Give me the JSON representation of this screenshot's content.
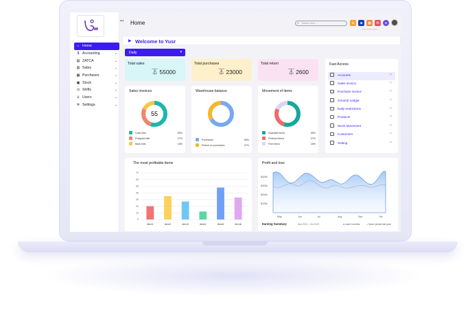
{
  "header": {
    "title": "Home",
    "search_placeholder": "Search here..."
  },
  "welcome": "Welcome to Yusr",
  "period": {
    "selected": "Daily"
  },
  "sidebar": {
    "items": [
      {
        "label": "Home",
        "icon": "home-icon",
        "active": true
      },
      {
        "label": "Accounting",
        "icon": "dollar-icon"
      },
      {
        "label": "ZATCA",
        "icon": "receipt-icon"
      },
      {
        "label": "Sales",
        "icon": "sales-icon"
      },
      {
        "label": "Purchases",
        "icon": "purchases-icon"
      },
      {
        "label": "Stock",
        "icon": "stock-icon"
      },
      {
        "label": "Shifts",
        "icon": "clock-icon"
      },
      {
        "label": "Users",
        "icon": "user-icon"
      },
      {
        "label": "Settings",
        "icon": "gear-icon"
      }
    ]
  },
  "stats": [
    {
      "title": "Total sales",
      "value": "55000",
      "bg": "#d8f6f7"
    },
    {
      "title": "Total purchases",
      "value": "23000",
      "bg": "#fdf0cb"
    },
    {
      "title": "Total return",
      "value": "2600",
      "bg": "#fbe2f3"
    }
  ],
  "sales_invoices": {
    "title": "Sales invoices",
    "center": "55",
    "legend": [
      {
        "label": "Cash bills",
        "pct": "55%",
        "color": "#1bb7ae"
      },
      {
        "label": "Postpaid bills",
        "pct": "27%",
        "color": "#f2856d"
      },
      {
        "label": "Bank bills",
        "pct": "18%",
        "color": "#f8c74a"
      }
    ]
  },
  "warehouse": {
    "title": "Warehouse balance",
    "legend": [
      {
        "label": "Purchases",
        "pct": "55%",
        "color": "#79a8f0"
      },
      {
        "label": "Return on purchases",
        "pct": "27%",
        "color": "#f5b726"
      }
    ]
  },
  "movement": {
    "title": "Movement of items",
    "legend": [
      {
        "label": "Available items",
        "pct": "55%",
        "color": "#16a89c"
      },
      {
        "label": "Finished items",
        "pct": "27%",
        "color": "#ef6a6a"
      },
      {
        "label": "Free items",
        "pct": "18%",
        "color": "#d9d5f5"
      }
    ]
  },
  "fast_access": {
    "title": "Fast Access",
    "items": [
      "Accounts",
      "Sales invoice",
      "Purchase invoice",
      "General Ledger",
      "Daily-restrictions",
      "Products",
      "Stock Movement",
      "Customers",
      "Setting"
    ]
  },
  "profitable": {
    "title": "The most profitable items"
  },
  "profit_loss": {
    "title": "Profit and loss",
    "y_ticks": [
      "$400k",
      "$300k",
      "$200k",
      "$100k"
    ],
    "x_ticks": [
      "May",
      "Jun",
      "Jul",
      "Aug",
      "Sep",
      "Oct"
    ],
    "summary_label": "Earning Summary",
    "range": "Mar 2022 - Oct 2023",
    "legend": [
      "Last 6 months",
      "Same period last year"
    ]
  },
  "chart_data": {
    "type": "bar",
    "title": "The most profitable items",
    "categories": [
      "item1",
      "item2",
      "item3",
      "item4",
      "item5",
      "item6"
    ],
    "values": [
      20,
      35,
      27,
      12,
      48,
      33
    ],
    "colors": [
      "#f27373",
      "#fbd15b",
      "#6fc8f2",
      "#5ed6a3",
      "#6fa0f5",
      "#e0a7f3"
    ],
    "y_ticks": [
      "70",
      "60",
      "50",
      "40",
      "30",
      "20",
      "10",
      "0"
    ],
    "ylim": [
      0,
      70
    ]
  }
}
